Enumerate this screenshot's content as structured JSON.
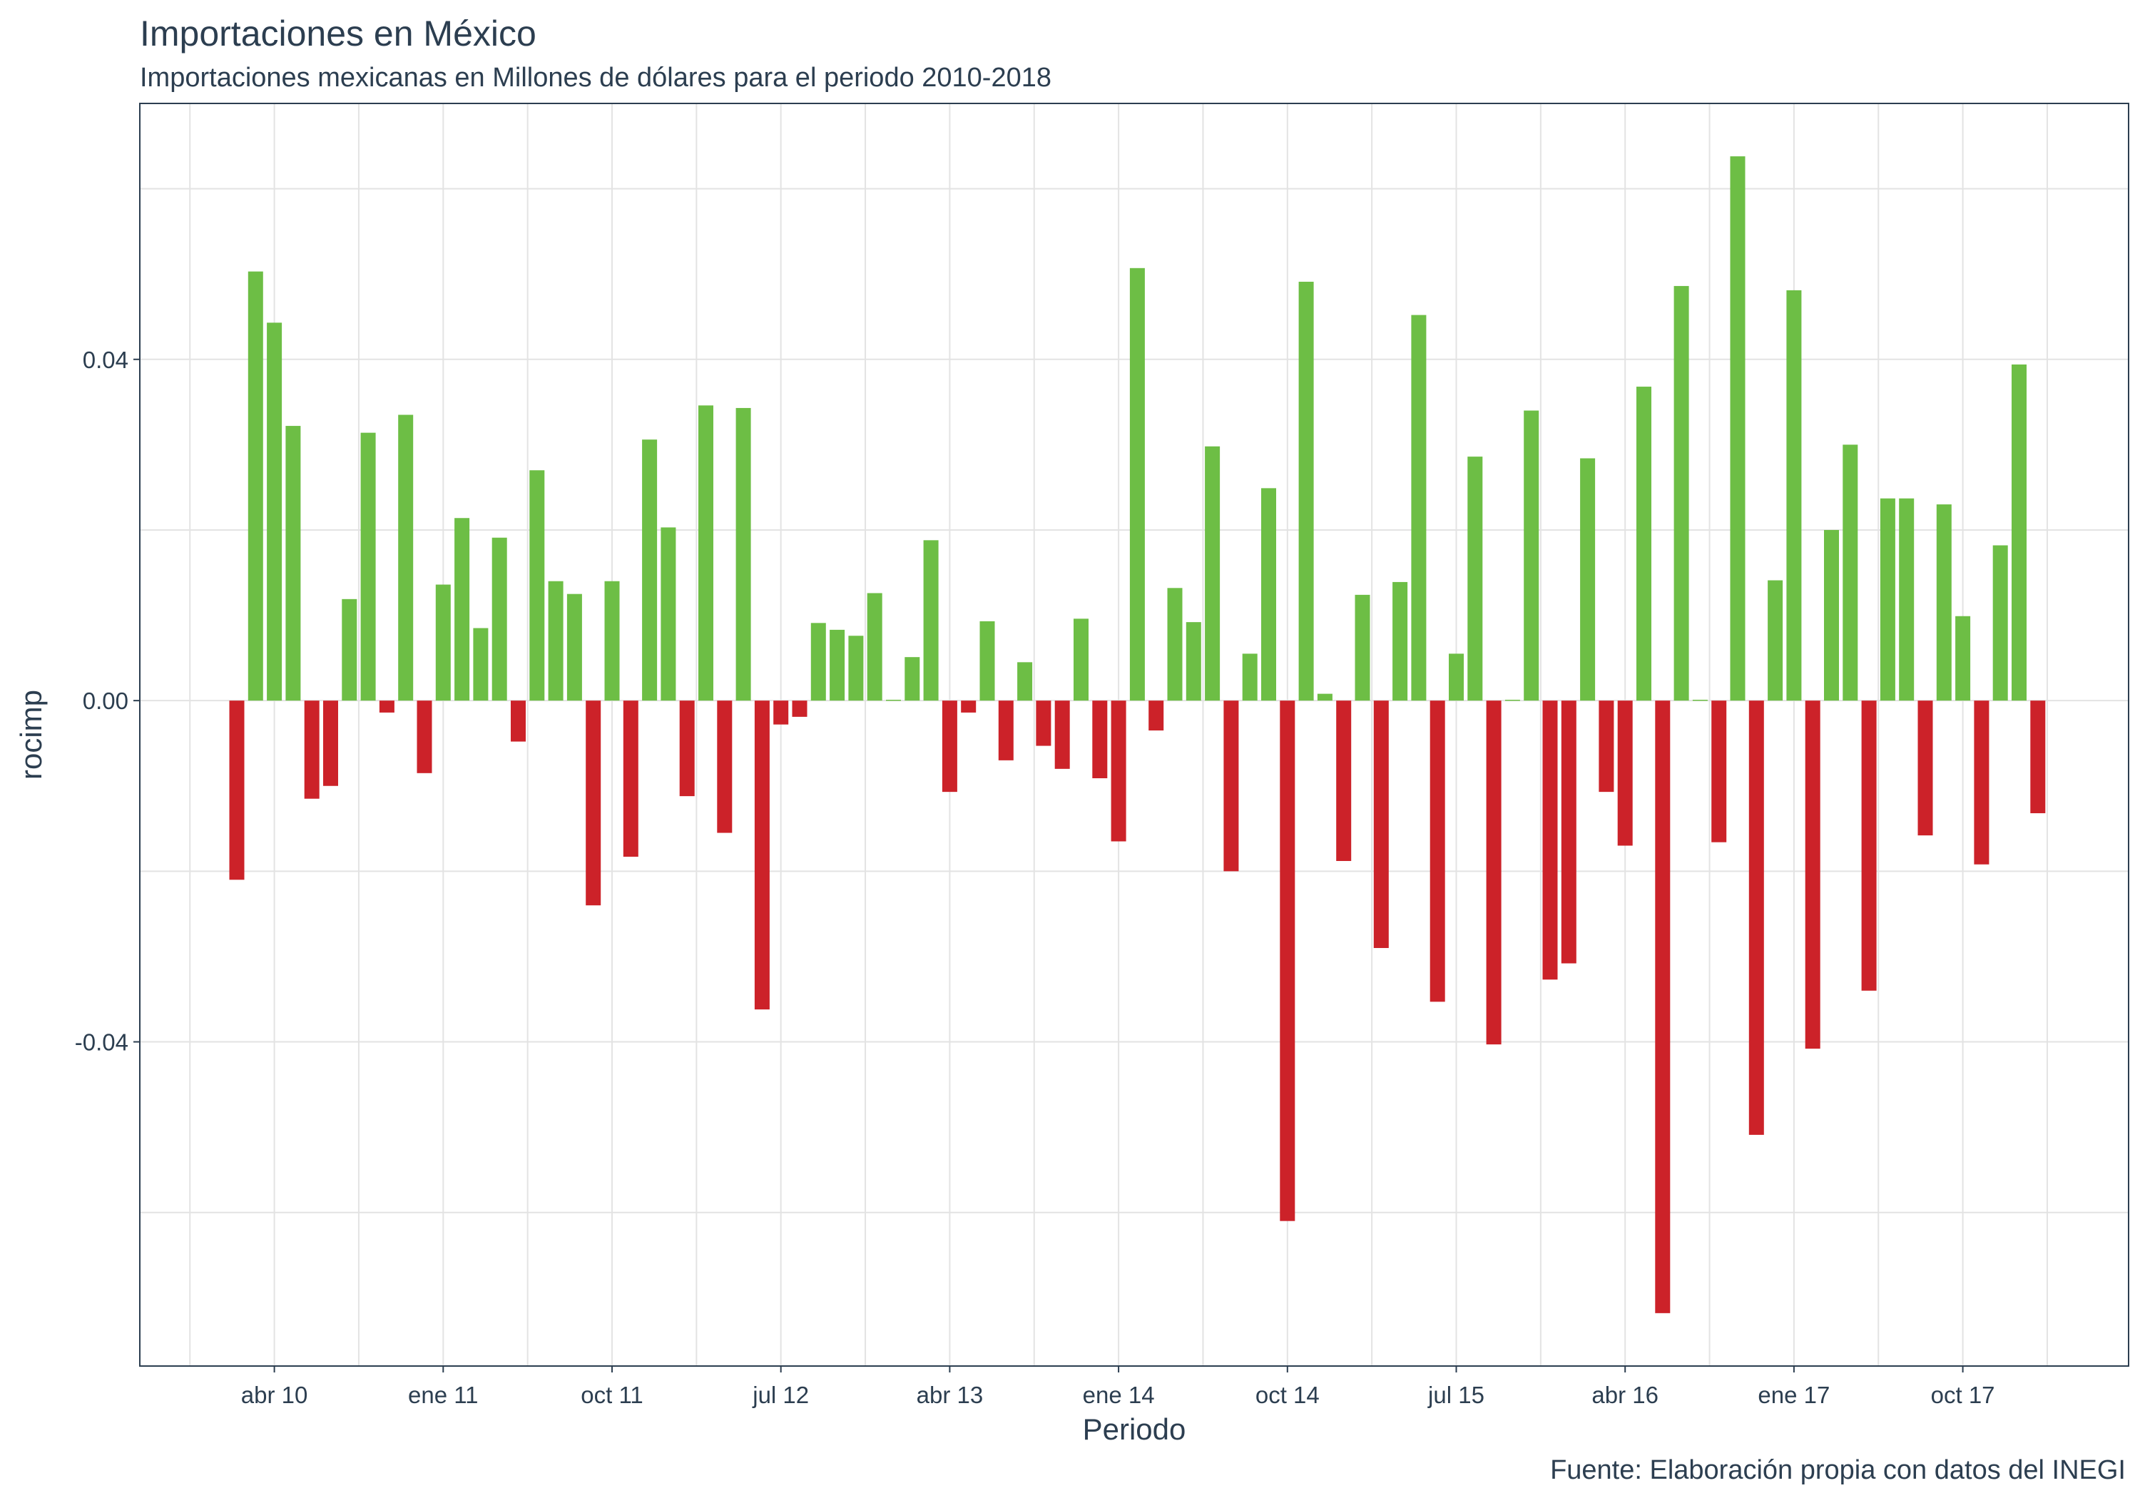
{
  "chart_data": {
    "type": "bar",
    "title": "Importaciones en México",
    "subtitle": "Importaciones mexicanas en Millones de dólares para el periodo 2010-2018",
    "caption": "Fuente: Elaboración propia con datos del INEGI",
    "xlabel": "Periodo",
    "ylabel": "rocimp",
    "x_tick_labels": [
      "abr 10",
      "ene 11",
      "oct 11",
      "jul 12",
      "abr 13",
      "ene 14",
      "oct 14",
      "jul 15",
      "abr 16",
      "ene 17",
      "oct 17"
    ],
    "y_tick_labels": [
      "0.04",
      "0.00",
      "-0.04"
    ],
    "y_ticks": [
      0.04,
      0.0,
      -0.04
    ],
    "ylim": [
      -0.078,
      0.07
    ],
    "grid": true,
    "colors": {
      "positive": "#6dbe45",
      "negative": "#cc2229"
    },
    "start_month": "feb 10",
    "values": [
      -0.021,
      0.0503,
      0.0443,
      0.0322,
      -0.0115,
      -0.01,
      0.0119,
      0.0314,
      -0.0014,
      0.0335,
      -0.0085,
      0.0136,
      0.0214,
      0.0085,
      0.0191,
      -0.0048,
      0.027,
      0.014,
      0.0125,
      -0.024,
      0.014,
      -0.0183,
      0.0306,
      0.0203,
      -0.0112,
      0.0346,
      -0.0155,
      0.0343,
      -0.0362,
      -0.0028,
      -0.0019,
      0.0091,
      0.0083,
      0.0076,
      0.0126,
      0.0001,
      0.0051,
      0.0188,
      -0.0107,
      -0.0014,
      0.0093,
      -0.007,
      0.0045,
      -0.0053,
      -0.008,
      0.0096,
      -0.0091,
      -0.0165,
      0.0507,
      -0.0035,
      0.0132,
      0.0092,
      0.0298,
      -0.02,
      0.0055,
      0.0249,
      -0.061,
      0.0491,
      0.0008,
      -0.0188,
      0.0124,
      -0.029,
      0.0139,
      0.0452,
      -0.0353,
      0.0055,
      0.0286,
      -0.0403,
      0.0001,
      0.034,
      -0.0327,
      -0.0308,
      0.0284,
      -0.0107,
      -0.017,
      0.0368,
      -0.0718,
      0.0486,
      0.0001,
      -0.0166,
      0.0638,
      -0.0509,
      0.0141,
      0.0481,
      -0.0408,
      0.02,
      0.03,
      -0.034,
      0.0237,
      0.0237,
      -0.0158,
      0.023,
      0.0099,
      -0.0192,
      0.0182,
      0.0394,
      -0.0132
    ]
  }
}
